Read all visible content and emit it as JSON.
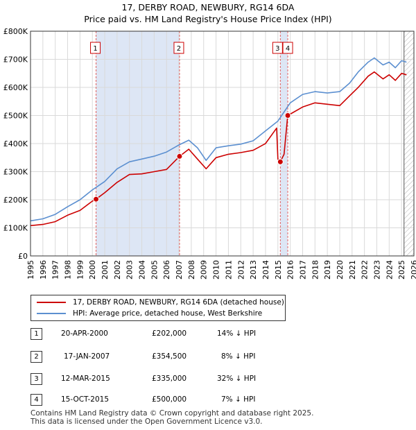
{
  "title": "17, DERBY ROAD, NEWBURY, RG14 6DA",
  "subtitle": "Price paid vs. HM Land Registry's House Price Index (HPI)",
  "colors": {
    "property": "#cc0000",
    "hpi": "#5b8fd0",
    "shade": "#dde6f5",
    "marker_line": "#e06060"
  },
  "legend": [
    {
      "label": "17, DERBY ROAD, NEWBURY, RG14 6DA (detached house)",
      "color": "#cc0000"
    },
    {
      "label": "HPI: Average price, detached house, West Berkshire",
      "color": "#5b8fd0"
    }
  ],
  "transactions": [
    {
      "num": "1",
      "date": "20-APR-2000",
      "price": "£202,000",
      "hpi": "14% ↓ HPI"
    },
    {
      "num": "2",
      "date": "17-JAN-2007",
      "price": "£354,500",
      "hpi": "8% ↓ HPI"
    },
    {
      "num": "3",
      "date": "12-MAR-2015",
      "price": "£335,000",
      "hpi": "32% ↓ HPI"
    },
    {
      "num": "4",
      "date": "15-OCT-2015",
      "price": "£500,000",
      "hpi": "7% ↓ HPI"
    }
  ],
  "footer": [
    "Contains HM Land Registry data © Crown copyright and database right 2025.",
    "This data is licensed under the Open Government Licence v3.0."
  ],
  "chart_data": {
    "type": "line",
    "title": "17, DERBY ROAD, NEWBURY, RG14 6DA",
    "subtitle": "Price paid vs. HM Land Registry's House Price Index (HPI)",
    "xlim": [
      1995,
      2026
    ],
    "ylim": [
      0,
      800000
    ],
    "y_ticks": [
      0,
      100000,
      200000,
      300000,
      400000,
      500000,
      600000,
      700000,
      800000
    ],
    "y_tick_labels": [
      "£0",
      "£100K",
      "£200K",
      "£300K",
      "£400K",
      "£500K",
      "£600K",
      "£700K",
      "£800K"
    ],
    "x_ticks": [
      1995,
      1996,
      1997,
      1998,
      1999,
      2000,
      2001,
      2002,
      2003,
      2004,
      2005,
      2006,
      2007,
      2008,
      2009,
      2010,
      2011,
      2012,
      2013,
      2014,
      2015,
      2016,
      2017,
      2018,
      2019,
      2020,
      2021,
      2022,
      2023,
      2024,
      2025,
      2026
    ],
    "grid": true,
    "shaded_ranges": [
      [
        2000.3,
        2007.05
      ],
      [
        2015.2,
        2015.8
      ]
    ],
    "hatched_after": 2025.2,
    "markers": [
      {
        "label": "1",
        "x": 2000.3,
        "y": 202000
      },
      {
        "label": "2",
        "x": 2007.05,
        "y": 354500
      },
      {
        "label": "3",
        "x": 2015.2,
        "y": 335000
      },
      {
        "label": "4",
        "x": 2015.8,
        "y": 500000
      }
    ],
    "series": [
      {
        "name": "HPI: Average price, detached house, West Berkshire",
        "color": "#5b8fd0",
        "x": [
          1995,
          1996,
          1997,
          1998,
          1999,
          2000,
          2001,
          2002,
          2003,
          2004,
          2005,
          2006,
          2007,
          2007.8,
          2008.5,
          2009.2,
          2010,
          2011,
          2012,
          2013,
          2014,
          2015,
          2016,
          2017,
          2018,
          2019,
          2020,
          2020.8,
          2021.5,
          2022.3,
          2022.8,
          2023.5,
          2024,
          2024.5,
          2025,
          2025.4
        ],
        "y": [
          125000,
          132000,
          148000,
          175000,
          200000,
          235000,
          265000,
          310000,
          335000,
          345000,
          355000,
          370000,
          395000,
          412000,
          385000,
          340000,
          385000,
          392000,
          398000,
          410000,
          445000,
          480000,
          545000,
          575000,
          585000,
          580000,
          585000,
          615000,
          655000,
          690000,
          705000,
          680000,
          690000,
          670000,
          695000,
          690000
        ]
      },
      {
        "name": "17, DERBY ROAD, NEWBURY, RG14 6DA (detached house)",
        "color": "#cc0000",
        "x": [
          1995,
          1996,
          1997,
          1998,
          1999,
          2000,
          2000.3,
          2001,
          2002,
          2003,
          2004,
          2005,
          2006,
          2007.05,
          2007.8,
          2008.5,
          2009.2,
          2010,
          2011,
          2012,
          2013,
          2014,
          2014.9,
          2015.0,
          2015.2,
          2015.5,
          2015.8,
          2016,
          2017,
          2018,
          2019,
          2020,
          2020.8,
          2021.5,
          2022.3,
          2022.8,
          2023.5,
          2024,
          2024.5,
          2025,
          2025.4
        ],
        "y": [
          108000,
          112000,
          122000,
          145000,
          162000,
          195000,
          202000,
          225000,
          262000,
          290000,
          292000,
          300000,
          308000,
          354500,
          380000,
          345000,
          310000,
          350000,
          362000,
          368000,
          376000,
          400000,
          455000,
          345000,
          335000,
          362000,
          500000,
          505000,
          530000,
          545000,
          540000,
          535000,
          570000,
          600000,
          640000,
          655000,
          630000,
          645000,
          625000,
          650000,
          645000
        ]
      }
    ]
  }
}
